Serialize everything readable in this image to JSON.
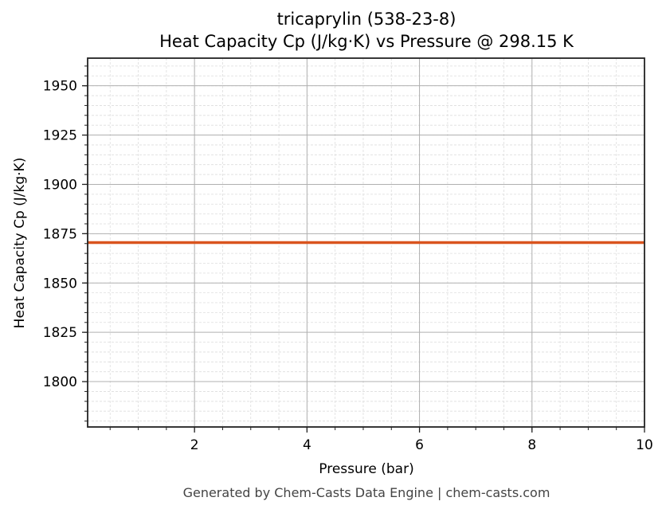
{
  "chart_data": {
    "type": "line",
    "title": "tricaprylin (538-23-8)",
    "subtitle": "Heat Capacity Cp (J/kg·K) vs Pressure @ 298.15 K",
    "xlabel": "Pressure (bar)",
    "ylabel": "Heat Capacity Cp (J/kg·K)",
    "xlim": [
      0.1,
      10
    ],
    "ylim": [
      1777,
      1964
    ],
    "x_ticks": [
      2,
      4,
      6,
      8,
      10
    ],
    "y_ticks": [
      1800,
      1825,
      1850,
      1875,
      1900,
      1925,
      1950
    ],
    "grid": true,
    "minor_grid": true,
    "legend": null,
    "series": [
      {
        "name": "Cp",
        "color": "#d9541e",
        "x": [
          0.1,
          1,
          2,
          3,
          4,
          5,
          6,
          7,
          8,
          9,
          10
        ],
        "values": [
          1870.5,
          1870.5,
          1870.5,
          1870.5,
          1870.5,
          1870.5,
          1870.5,
          1870.5,
          1870.5,
          1870.5,
          1870.5
        ]
      }
    ]
  },
  "labels": {
    "title_line1": "tricaprylin (538-23-8)",
    "title_line2": "Heat Capacity Cp (J/kg·K) vs Pressure @ 298.15 K",
    "xlabel": "Pressure (bar)",
    "ylabel": "Heat Capacity Cp (J/kg·K)",
    "footer": "Generated by Chem-Casts Data Engine | chem-casts.com",
    "x_tick_labels": [
      "2",
      "4",
      "6",
      "8",
      "10"
    ],
    "y_tick_labels": [
      "1800",
      "1825",
      "1850",
      "1875",
      "1900",
      "1925",
      "1950"
    ]
  }
}
